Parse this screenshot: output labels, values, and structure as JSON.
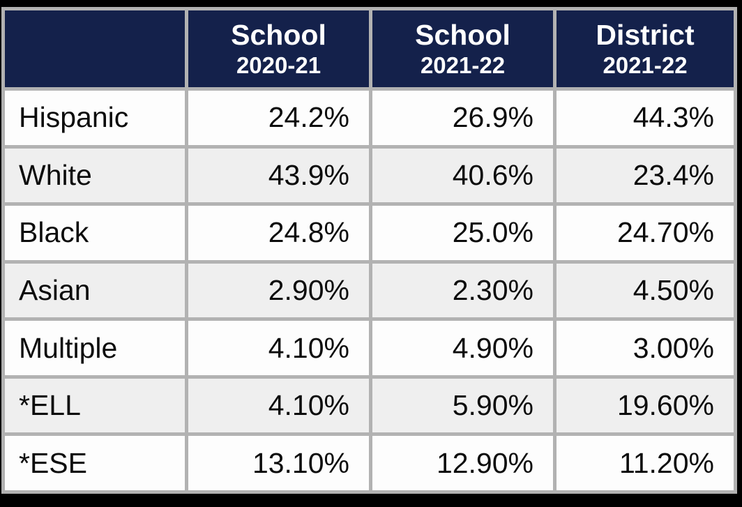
{
  "chart_data": {
    "type": "table",
    "title": "",
    "columns": [
      {
        "line1": "",
        "line2": ""
      },
      {
        "line1": "School",
        "line2": "2020-21"
      },
      {
        "line1": "School",
        "line2": "2021-22"
      },
      {
        "line1": "District",
        "line2": "2021-22"
      }
    ],
    "rows": [
      {
        "label": "Hispanic",
        "values": [
          "24.2%",
          "26.9%",
          "44.3%"
        ]
      },
      {
        "label": "White",
        "values": [
          "43.9%",
          "40.6%",
          "23.4%"
        ]
      },
      {
        "label": "Black",
        "values": [
          "24.8%",
          "25.0%",
          "24.70%"
        ]
      },
      {
        "label": "Asian",
        "values": [
          "2.90%",
          "2.30%",
          "4.50%"
        ]
      },
      {
        "label": "Multiple",
        "values": [
          "4.10%",
          "4.90%",
          "3.00%"
        ]
      },
      {
        "label": "*ELL",
        "values": [
          "4.10%",
          "5.90%",
          "19.60%"
        ]
      },
      {
        "label": "*ESE",
        "values": [
          "13.10%",
          "12.90%",
          "11.20%"
        ]
      }
    ],
    "layout": {
      "grid": "on",
      "header_position": "top",
      "alternating_rows": true
    },
    "colors": {
      "header_background": "#14214b",
      "header_text": "#ffffff",
      "border": "#b2b2b2",
      "row_odd": "#fdfdfd",
      "row_even": "#efefef",
      "body_text": "#0c0c0c",
      "outer_frame": "#000000"
    }
  }
}
